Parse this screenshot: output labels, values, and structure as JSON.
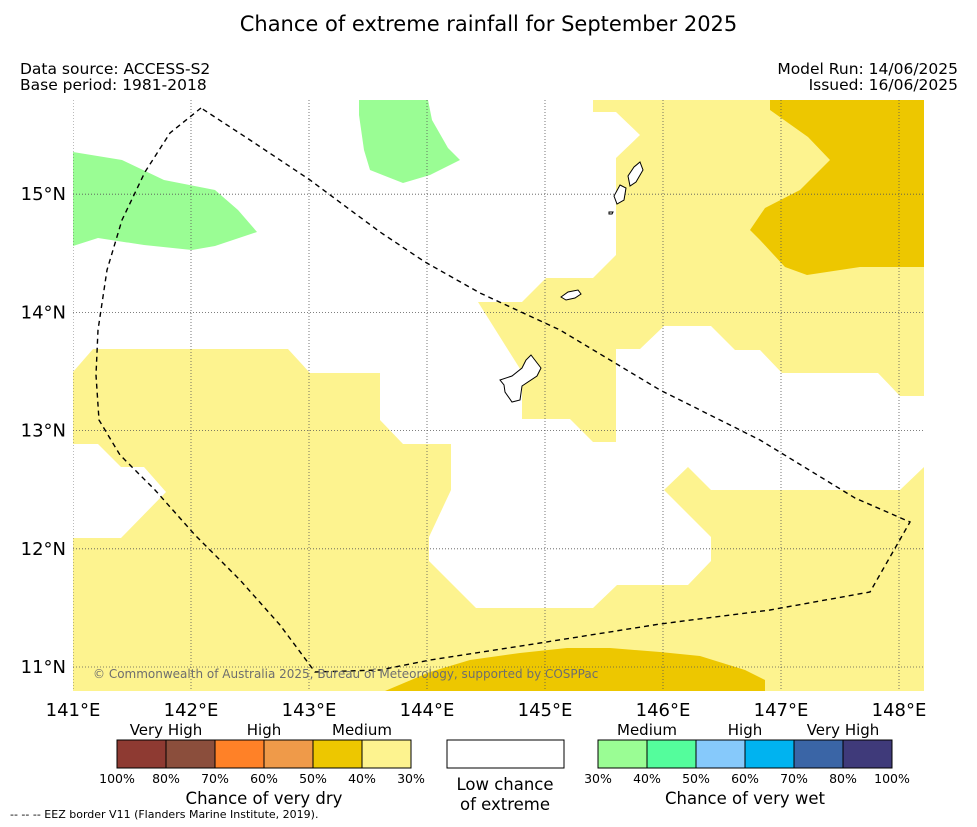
{
  "title": "Chance of extreme rainfall for September 2025",
  "data_source": "Data source: ACCESS-S2",
  "base_period": "Base period: 1981-2018",
  "model_run": "Model Run: 14/06/2025",
  "issued": "Issued: 16/06/2025",
  "credit": "© Commonwealth of Australia 2025, Bureau of Meteorology, supported by COSPPac",
  "eez_note": "--  --  -- EEZ border V11 (Flanders Marine Institute, 2019).",
  "axes": {
    "x_ticks": [
      "141°E",
      "142°E",
      "143°E",
      "144°E",
      "145°E",
      "146°E",
      "147°E",
      "148°E"
    ],
    "y_ticks": [
      "15°N",
      "14°N",
      "13°N",
      "12°N",
      "11°N"
    ],
    "lon_range": [
      141,
      148.2
    ],
    "lat_range": [
      10.8,
      15.8
    ],
    "grid": true
  },
  "colors": {
    "dry_medium": "#edc700",
    "dry_low": "#fdf38f",
    "wet_low": "#9afd94",
    "eez_line": "#000000",
    "island": "#000000"
  },
  "legend": {
    "dry": {
      "title": "Chance of very dry",
      "groups": [
        "Very High",
        "High",
        "Medium"
      ],
      "colors": [
        "#8e3a32",
        "#8b4e3c",
        "#ff8127",
        "#ef9a49",
        "#edc700",
        "#fdf38f"
      ],
      "pcts": [
        "100%",
        "80%",
        "70%",
        "60%",
        "50%",
        "40%",
        "30%"
      ]
    },
    "low": {
      "line1": "Low chance",
      "line2": "of extreme"
    },
    "wet": {
      "title": "Chance of very wet",
      "groups": [
        "Medium",
        "High",
        "Very High"
      ],
      "colors": [
        "#9afd94",
        "#54fd9c",
        "#86c9fb",
        "#00b3f0",
        "#3a65a6",
        "#3f3a7a"
      ],
      "pcts": [
        "30%",
        "40%",
        "50%",
        "60%",
        "70%",
        "80%",
        "100%"
      ]
    }
  }
}
